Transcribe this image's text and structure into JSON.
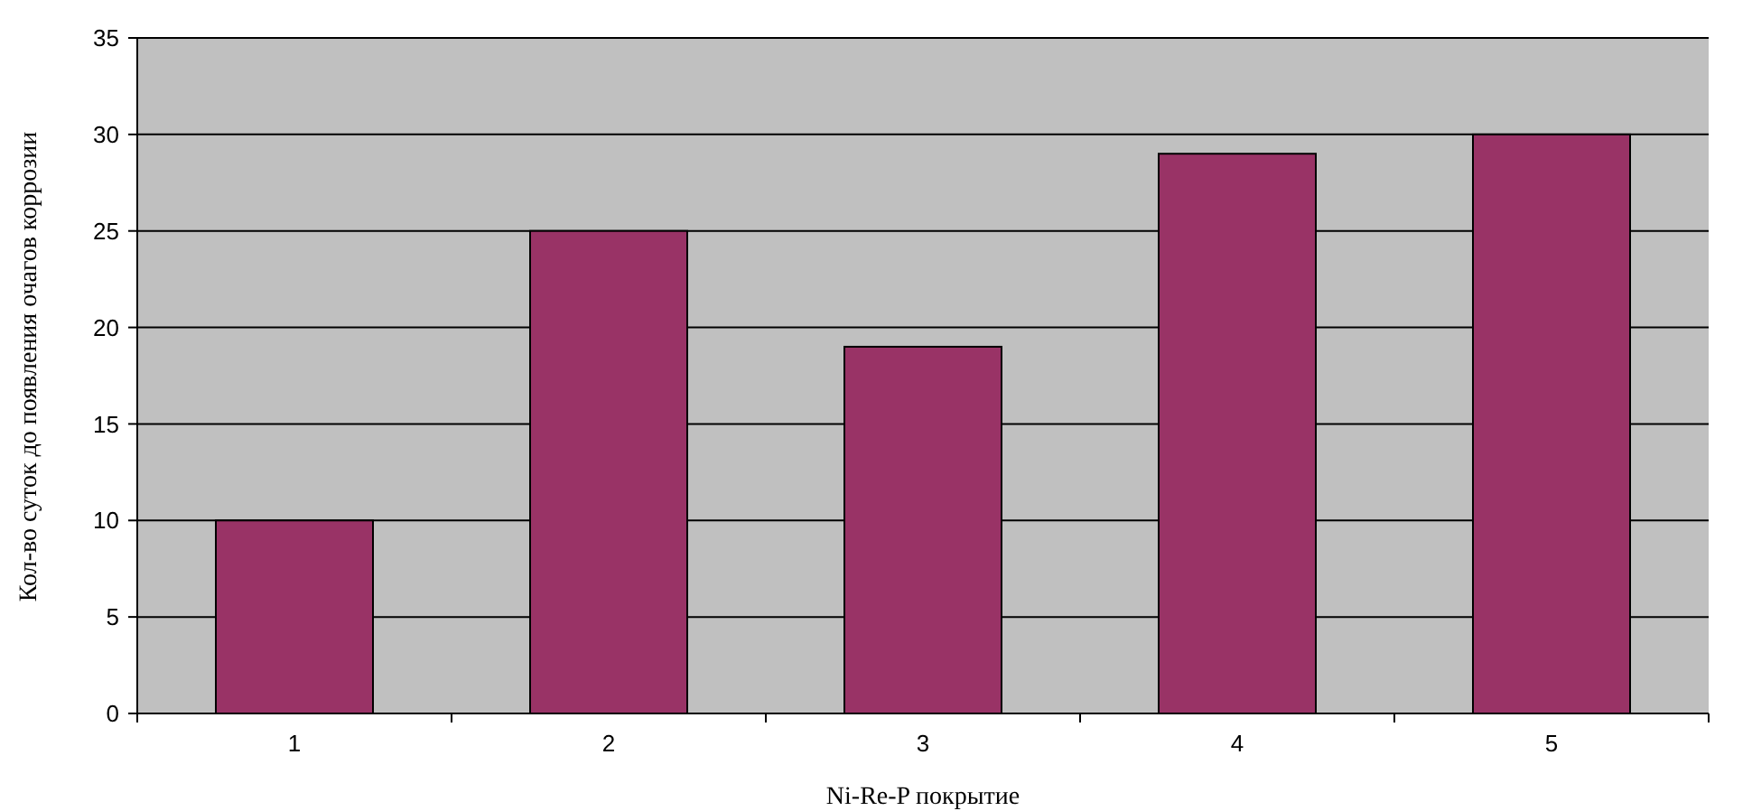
{
  "chart_data": {
    "type": "bar",
    "xlabel": "Ni-Re-P покрытие",
    "ylabel": "Кол-во суток до появления очагов коррозии",
    "categories": [
      "1",
      "2",
      "3",
      "4",
      "5"
    ],
    "values": [
      10,
      25,
      19,
      29,
      30
    ],
    "color": "#993366",
    "ylim": [
      0,
      35
    ],
    "yticks": [
      0,
      5,
      10,
      15,
      20,
      25,
      30,
      35
    ],
    "grid": "y"
  }
}
